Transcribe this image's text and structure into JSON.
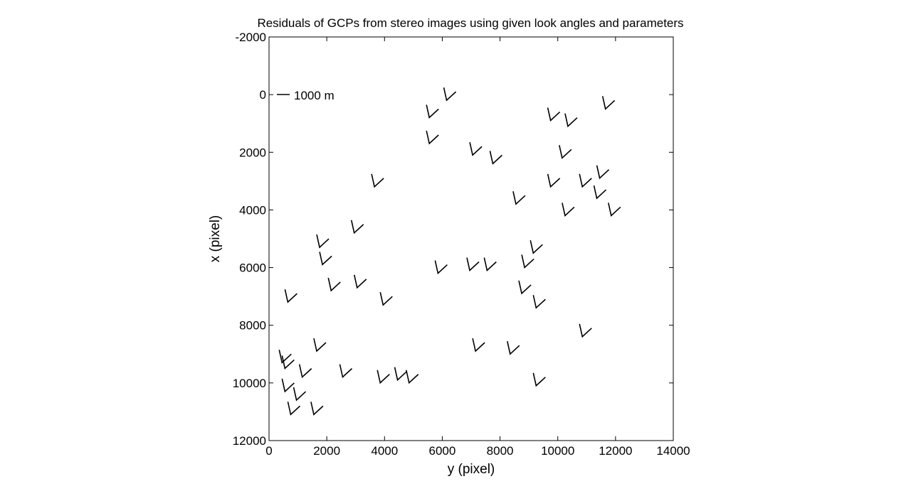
{
  "chart_data": {
    "type": "quiver",
    "title": "Residuals of GCPs from stereo images using given look angles and parameters",
    "xlabel": "y (pixel)",
    "ylabel": "x (pixel)",
    "xlim": [
      0,
      14000
    ],
    "ylim": [
      12000,
      -2000
    ],
    "y_axis_reversed": true,
    "xticks": [
      0,
      2000,
      4000,
      6000,
      8000,
      10000,
      12000,
      14000
    ],
    "yticks": [
      -2000,
      0,
      2000,
      4000,
      6000,
      8000,
      10000,
      12000
    ],
    "grid": false,
    "scale_bar": {
      "label": "1000 m"
    },
    "residual_shape": "V",
    "points": [
      [
        6200,
        0
      ],
      [
        5600,
        600
      ],
      [
        9800,
        700
      ],
      [
        10400,
        900
      ],
      [
        11700,
        300
      ],
      [
        5600,
        1500
      ],
      [
        7100,
        1900
      ],
      [
        7800,
        2200
      ],
      [
        10200,
        2000
      ],
      [
        3700,
        3000
      ],
      [
        9800,
        3000
      ],
      [
        10900,
        3000
      ],
      [
        11500,
        2700
      ],
      [
        11400,
        3400
      ],
      [
        8600,
        3600
      ],
      [
        10300,
        4000
      ],
      [
        11900,
        4000
      ],
      [
        3000,
        4600
      ],
      [
        1800,
        5100
      ],
      [
        1900,
        5700
      ],
      [
        9200,
        5300
      ],
      [
        5900,
        6000
      ],
      [
        7000,
        5900
      ],
      [
        7600,
        5900
      ],
      [
        8900,
        5800
      ],
      [
        700,
        7000
      ],
      [
        2200,
        6600
      ],
      [
        3100,
        6500
      ],
      [
        4000,
        7100
      ],
      [
        8800,
        6700
      ],
      [
        9300,
        7200
      ],
      [
        10900,
        8200
      ],
      [
        1700,
        8700
      ],
      [
        7200,
        8700
      ],
      [
        8400,
        8800
      ],
      [
        500,
        9100
      ],
      [
        600,
        9300
      ],
      [
        1200,
        9600
      ],
      [
        2600,
        9600
      ],
      [
        3900,
        9800
      ],
      [
        4500,
        9700
      ],
      [
        4900,
        9800
      ],
      [
        9300,
        9900
      ],
      [
        600,
        10100
      ],
      [
        1000,
        10400
      ],
      [
        800,
        10900
      ],
      [
        1600,
        10900
      ]
    ]
  }
}
